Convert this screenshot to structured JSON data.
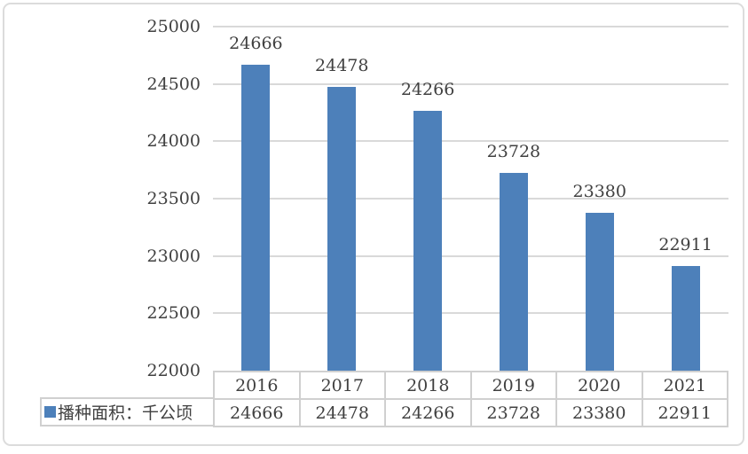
{
  "chart_data": {
    "type": "bar",
    "title": "",
    "xlabel": "",
    "ylabel": "",
    "categories": [
      "2016",
      "2017",
      "2018",
      "2019",
      "2020",
      "2021"
    ],
    "series": [
      {
        "name": "播种面积：千公顷",
        "values": [
          24666,
          24478,
          24266,
          23728,
          23380,
          22911
        ]
      }
    ],
    "data_labels": [
      "24666",
      "24478",
      "24266",
      "23728",
      "23380",
      "22911"
    ],
    "yticks": [
      "25000",
      "24500",
      "24000",
      "23500",
      "23000",
      "22500",
      "22000"
    ],
    "ylim": [
      22000,
      25000
    ],
    "ytick_step": 500,
    "grid": "horizontal",
    "legend_position": "bottom-left",
    "bar_color": "#4d80ba",
    "data_table_shown": true
  },
  "legend": {
    "swatch_icon": "filled-square",
    "swatch_color": "#4d80ba"
  },
  "colors": {
    "bar": "#4d80ba",
    "gridline": "#d9d9d9",
    "table_border": "#d0d0d0",
    "text": "#404040",
    "frame_border": "#dcdcdc",
    "background": "#ffffff"
  }
}
